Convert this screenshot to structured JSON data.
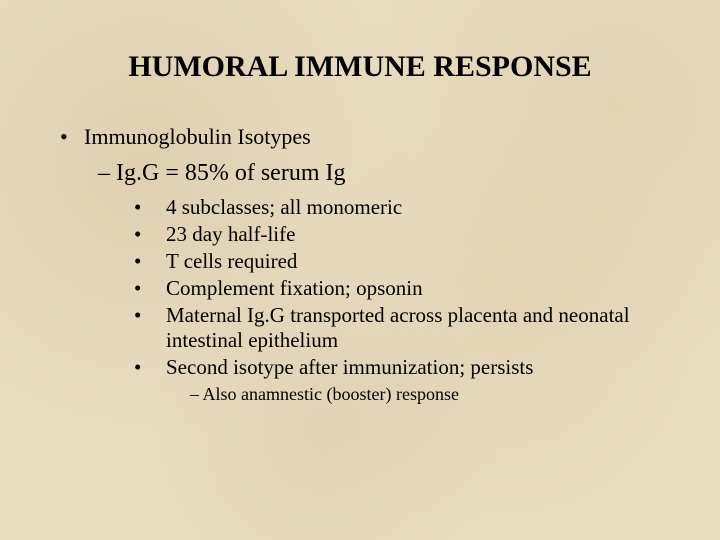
{
  "colors": {
    "background": "#e8dcc0",
    "text": "#000000"
  },
  "typography": {
    "font_family": "Times New Roman",
    "title_fontsize": 30,
    "title_weight": "bold",
    "level1_fontsize": 22,
    "level2_fontsize": 24,
    "level3_fontsize": 21,
    "level4_fontsize": 18
  },
  "slide": {
    "title": "HUMORAL IMMUNE RESPONSE",
    "level1": {
      "bullet": "•",
      "text": "Immunoglobulin Isotypes"
    },
    "level2": {
      "dash": "–",
      "text": "Ig.G = 85% of serum Ig"
    },
    "level3": {
      "bullet": "•",
      "items": [
        "4 subclasses; all monomeric",
        "23 day half-life",
        "T cells required",
        "Complement fixation; opsonin",
        "Maternal Ig.G transported across placenta and neonatal intestinal epithelium",
        "Second isotype after immunization; persists"
      ]
    },
    "level4": {
      "dash": "–",
      "text": "Also anamnestic (booster) response"
    }
  }
}
